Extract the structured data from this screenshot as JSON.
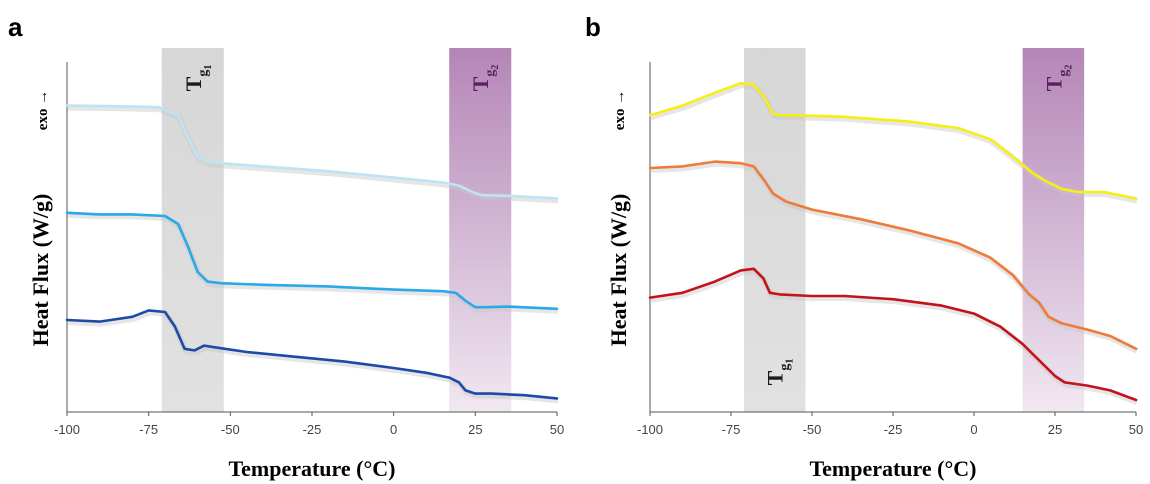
{
  "panels": [
    {
      "letter": "a",
      "ylabel": "Heat Flux (W/g)",
      "exo": "exo →",
      "xlabel": "Temperature (°C)",
      "bands": [
        {
          "from": -71,
          "to": -52,
          "label": "T",
          "sub": "g",
          "subsub": "1",
          "color": "#c9c9c9",
          "text_color": "#1a1a1a",
          "label_at": "top"
        },
        {
          "from": 17,
          "to": 36,
          "label": "T",
          "sub": "g",
          "subsub": "2",
          "color": "#b07fb3",
          "text_color": "#5a1f5e",
          "label_at": "top"
        }
      ]
    },
    {
      "letter": "b",
      "ylabel": "Heat Flux (W/g)",
      "exo": "exo →",
      "xlabel": "Temperature (°C)",
      "bands": [
        {
          "from": -71,
          "to": -52,
          "label": "T",
          "sub": "g",
          "subsub": "1",
          "color": "#c9c9c9",
          "text_color": "#1a1a1a",
          "label_at": "bottom"
        },
        {
          "from": 15,
          "to": 34,
          "label": "T",
          "sub": "g",
          "subsub": "2",
          "color": "#b07fb3",
          "text_color": "#5a1f5e",
          "label_at": "top"
        }
      ]
    }
  ],
  "chart_data": [
    {
      "type": "line",
      "panel": "a",
      "xlabel": "Temperature (°C)",
      "ylabel": "Heat Flux (W/g)",
      "xlim": [
        -100,
        50
      ],
      "ylim": [
        0,
        10
      ],
      "xticks": [
        "-100",
        "-75",
        "-50",
        "-25",
        "0",
        "25",
        "50"
      ],
      "series": [
        {
          "color": "#bfe3f5",
          "x": [
            -100,
            -85,
            -72,
            -66,
            -63,
            -60,
            -57,
            -53,
            -40,
            -20,
            0,
            15,
            20,
            24,
            27,
            35,
            50
          ],
          "y": [
            9.2,
            9.18,
            9.15,
            8.9,
            8.2,
            7.6,
            7.45,
            7.4,
            7.3,
            7.15,
            6.95,
            6.8,
            6.7,
            6.5,
            6.4,
            6.38,
            6.3
          ]
        },
        {
          "color": "#29a9e6",
          "x": [
            -100,
            -90,
            -80,
            -70,
            -66,
            -63,
            -60,
            -57,
            -53,
            -40,
            -20,
            0,
            15,
            19,
            22,
            25,
            28,
            35,
            50
          ],
          "y": [
            5.85,
            5.8,
            5.8,
            5.75,
            5.5,
            4.8,
            4.0,
            3.7,
            3.65,
            3.6,
            3.55,
            3.45,
            3.4,
            3.35,
            3.1,
            2.9,
            2.9,
            2.92,
            2.85
          ]
        },
        {
          "color": "#1d4aa8",
          "x": [
            -100,
            -90,
            -80,
            -75,
            -70,
            -67,
            -64,
            -61,
            -58,
            -55,
            -45,
            -30,
            -15,
            0,
            10,
            17,
            20,
            22,
            25,
            30,
            40,
            50
          ],
          "y": [
            2.5,
            2.45,
            2.6,
            2.8,
            2.75,
            2.3,
            1.6,
            1.55,
            1.7,
            1.65,
            1.5,
            1.35,
            1.2,
            1.0,
            0.85,
            0.7,
            0.55,
            0.3,
            0.2,
            0.2,
            0.15,
            0.05
          ]
        }
      ]
    },
    {
      "type": "line",
      "panel": "b",
      "xlabel": "Temperature (°C)",
      "ylabel": "Heat Flux (W/g)",
      "xlim": [
        -100,
        50
      ],
      "ylim": [
        0,
        10
      ],
      "xticks": [
        "-100",
        "-75",
        "-50",
        "-25",
        "0",
        "25",
        "50"
      ],
      "series": [
        {
          "color": "#f5ef14",
          "x": [
            -100,
            -90,
            -80,
            -72,
            -68,
            -65,
            -62,
            -60,
            -55,
            -40,
            -20,
            -5,
            5,
            12,
            18,
            22,
            27,
            32,
            40,
            50
          ],
          "y": [
            8.9,
            9.2,
            9.6,
            9.9,
            9.85,
            9.5,
            8.95,
            8.9,
            8.9,
            8.85,
            8.7,
            8.5,
            8.15,
            7.6,
            7.1,
            6.85,
            6.6,
            6.5,
            6.5,
            6.3
          ]
        },
        {
          "color": "#ef7b3a",
          "x": [
            -100,
            -90,
            -80,
            -72,
            -68,
            -65,
            -62,
            -58,
            -50,
            -35,
            -20,
            -5,
            5,
            12,
            17,
            20,
            23,
            27,
            35,
            42,
            50
          ],
          "y": [
            7.25,
            7.3,
            7.45,
            7.4,
            7.3,
            6.9,
            6.45,
            6.2,
            5.95,
            5.65,
            5.3,
            4.9,
            4.45,
            3.9,
            3.3,
            3.05,
            2.6,
            2.4,
            2.2,
            2.0,
            1.6
          ]
        },
        {
          "color": "#c4121a",
          "x": [
            -100,
            -90,
            -80,
            -72,
            -68,
            -65,
            -63,
            -60,
            -50,
            -40,
            -25,
            -10,
            0,
            8,
            15,
            20,
            25,
            28,
            35,
            42,
            50
          ],
          "y": [
            3.2,
            3.35,
            3.7,
            4.05,
            4.1,
            3.8,
            3.35,
            3.3,
            3.25,
            3.25,
            3.15,
            2.95,
            2.7,
            2.3,
            1.75,
            1.25,
            0.75,
            0.55,
            0.45,
            0.3,
            0.0
          ]
        }
      ]
    }
  ]
}
